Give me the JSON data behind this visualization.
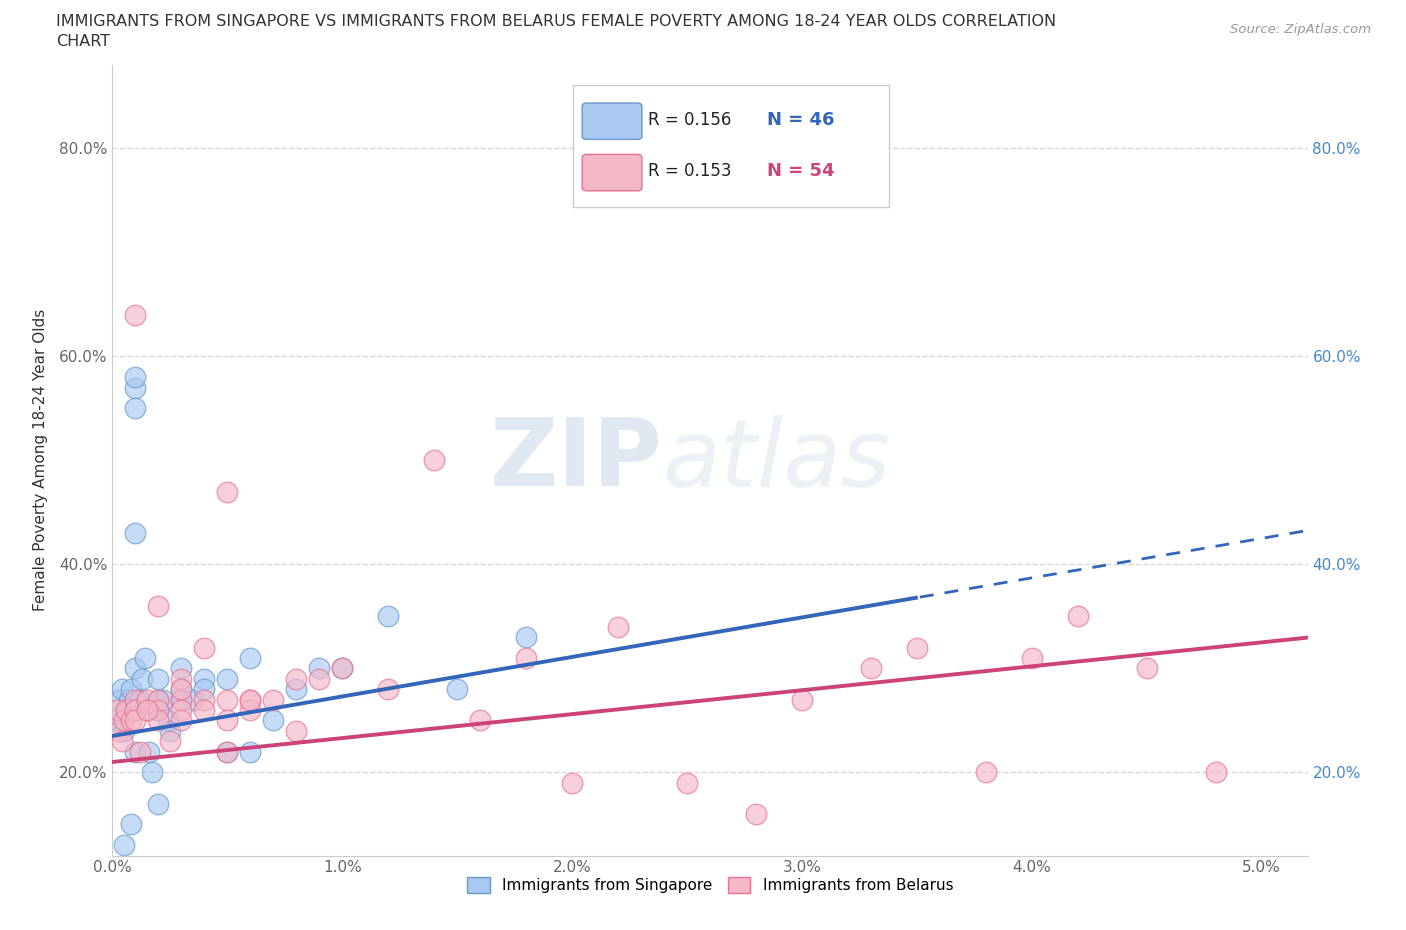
{
  "title_line1": "IMMIGRANTS FROM SINGAPORE VS IMMIGRANTS FROM BELARUS FEMALE POVERTY AMONG 18-24 YEAR OLDS CORRELATION",
  "title_line2": "CHART",
  "source": "Source: ZipAtlas.com",
  "ylabel": "Female Poverty Among 18-24 Year Olds",
  "xlim": [
    0.0,
    0.052
  ],
  "ylim": [
    0.12,
    0.88
  ],
  "xticks": [
    0.0,
    0.01,
    0.02,
    0.03,
    0.04,
    0.05
  ],
  "xticklabels": [
    "0.0%",
    "1.0%",
    "2.0%",
    "3.0%",
    "4.0%",
    "5.0%"
  ],
  "yticks": [
    0.2,
    0.4,
    0.6,
    0.8
  ],
  "yticklabels": [
    "20.0%",
    "40.0%",
    "60.0%",
    "80.0%"
  ],
  "singapore_color": "#a8c8f0",
  "belarus_color": "#f5b8c8",
  "singapore_edge": "#6699cc",
  "belarus_edge": "#e87090",
  "trend_singapore": "#3366bb",
  "trend_belarus": "#cc4477",
  "right_tick_color": "#4488cc",
  "R_singapore": 0.156,
  "N_singapore": 46,
  "R_belarus": 0.153,
  "N_belarus": 54,
  "watermark_zip": "ZIP",
  "watermark_atlas": "atlas",
  "background_color": "#ffffff",
  "grid_color": "#cccccc",
  "sg_trend_intercept": 0.235,
  "sg_trend_slope": 3.8,
  "bl_trend_intercept": 0.21,
  "bl_trend_slope": 2.3,
  "sg_max_solid": 0.035,
  "singapore_x": [
    0.0002,
    0.0003,
    0.0004,
    0.0005,
    0.0006,
    0.0007,
    0.0008,
    0.001,
    0.001,
    0.001,
    0.0012,
    0.0013,
    0.0014,
    0.0015,
    0.0016,
    0.0017,
    0.002,
    0.002,
    0.002,
    0.002,
    0.0022,
    0.0024,
    0.0025,
    0.003,
    0.003,
    0.003,
    0.0035,
    0.004,
    0.004,
    0.005,
    0.005,
    0.006,
    0.006,
    0.007,
    0.008,
    0.009,
    0.01,
    0.012,
    0.015,
    0.018,
    0.001,
    0.001,
    0.001,
    0.001,
    0.0005,
    0.0008
  ],
  "singapore_y": [
    0.25,
    0.27,
    0.28,
    0.24,
    0.26,
    0.27,
    0.28,
    0.3,
    0.22,
    0.26,
    0.27,
    0.29,
    0.31,
    0.26,
    0.22,
    0.2,
    0.29,
    0.27,
    0.26,
    0.17,
    0.27,
    0.25,
    0.24,
    0.27,
    0.3,
    0.28,
    0.27,
    0.29,
    0.28,
    0.22,
    0.29,
    0.31,
    0.22,
    0.25,
    0.28,
    0.3,
    0.3,
    0.35,
    0.28,
    0.33,
    0.57,
    0.58,
    0.43,
    0.55,
    0.13,
    0.15
  ],
  "belarus_x": [
    0.0002,
    0.0003,
    0.0004,
    0.0005,
    0.0006,
    0.0008,
    0.001,
    0.001,
    0.001,
    0.0012,
    0.0015,
    0.002,
    0.002,
    0.002,
    0.0025,
    0.003,
    0.003,
    0.003,
    0.004,
    0.004,
    0.005,
    0.005,
    0.006,
    0.006,
    0.007,
    0.008,
    0.009,
    0.01,
    0.012,
    0.014,
    0.016,
    0.018,
    0.02,
    0.022,
    0.025,
    0.028,
    0.03,
    0.033,
    0.035,
    0.038,
    0.04,
    0.042,
    0.045,
    0.048,
    0.001,
    0.002,
    0.003,
    0.004,
    0.005,
    0.006,
    0.0015,
    0.003,
    0.005,
    0.008
  ],
  "belarus_y": [
    0.26,
    0.24,
    0.23,
    0.25,
    0.26,
    0.25,
    0.27,
    0.26,
    0.25,
    0.22,
    0.27,
    0.27,
    0.26,
    0.25,
    0.23,
    0.27,
    0.26,
    0.25,
    0.27,
    0.26,
    0.27,
    0.25,
    0.27,
    0.26,
    0.27,
    0.29,
    0.29,
    0.3,
    0.28,
    0.5,
    0.25,
    0.31,
    0.19,
    0.34,
    0.19,
    0.16,
    0.27,
    0.3,
    0.32,
    0.2,
    0.31,
    0.35,
    0.3,
    0.2,
    0.64,
    0.36,
    0.29,
    0.32,
    0.47,
    0.27,
    0.26,
    0.28,
    0.22,
    0.24
  ]
}
